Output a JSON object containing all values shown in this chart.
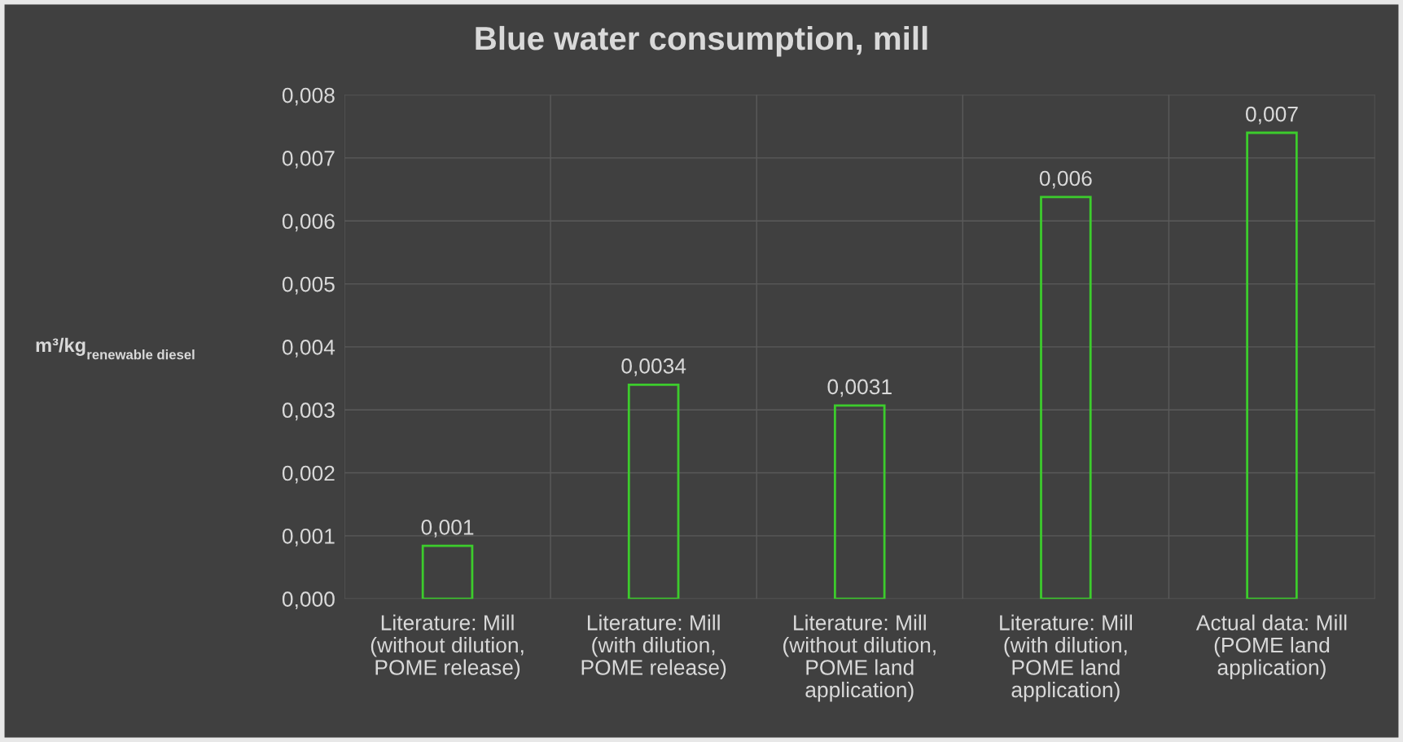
{
  "chart_data": {
    "type": "bar",
    "title": "Blue water consumption, mill",
    "ylabel": "m³/kg$_{renewable diesel}$",
    "categories": [
      "Literature: Mill (without dilution, POME release)",
      "Literature: Mill (with dilution, POME release)",
      "Literature: Mill (without dilution, POME land application)",
      "Literature: Mill (with dilution, POME land application)",
      "Actual data: Mill (POME land application)"
    ],
    "values": [
      0.00084,
      0.0034,
      0.00307,
      0.00638,
      0.0074
    ],
    "value_labels": [
      "0,001",
      "0,0034",
      "0,0031",
      "0,006",
      "0,007"
    ],
    "color": "#3ccc2c",
    "ylim": [
      0,
      0.008
    ],
    "yticks": [
      {
        "value": 0,
        "label": "0,000"
      },
      {
        "value": 0.001,
        "label": "0,001"
      },
      {
        "value": 0.002,
        "label": "0,002"
      },
      {
        "value": 0.003,
        "label": "0,003"
      },
      {
        "value": 0.004,
        "label": "0,004"
      },
      {
        "value": 0.005,
        "label": "0,005"
      },
      {
        "value": 0.006,
        "label": "0,006"
      },
      {
        "value": 0.007,
        "label": "0,007"
      },
      {
        "value": 0.008,
        "label": "0,008"
      }
    ],
    "grid": true
  }
}
